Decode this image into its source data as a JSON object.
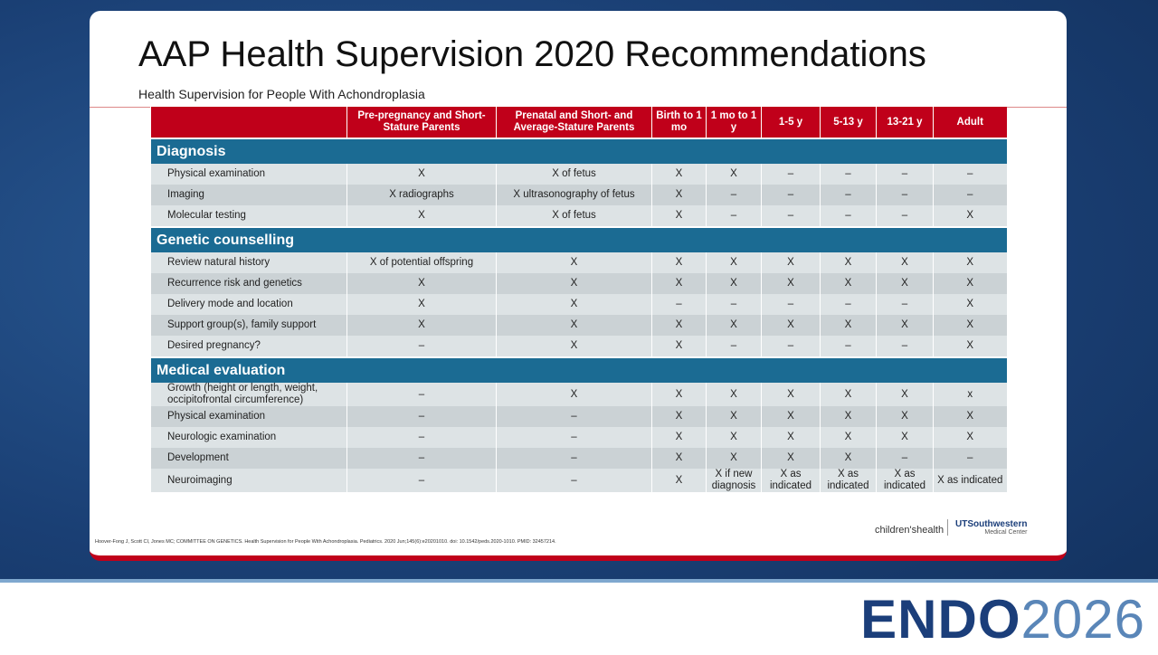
{
  "title": "AAP Health Supervision 2020 Recommendations",
  "subtitle": "Health Supervision for People With Achondroplasia",
  "table": {
    "columns": [
      "Pre-pregnancy and Short-Stature Parents",
      "Prenatal and Short- and Average-Stature Parents",
      "Birth to 1 mo",
      "1 mo to 1 y",
      "1-5 y",
      "5-13 y",
      "13-21 y",
      "Adult"
    ],
    "sections": [
      {
        "title": "Diagnosis",
        "rows": [
          [
            "Physical examination",
            "X",
            "X of fetus",
            "X",
            "X",
            "–",
            "–",
            "–",
            "–"
          ],
          [
            "Imaging",
            "X radiographs",
            "X ultrasonography of fetus",
            "X",
            "–",
            "–",
            "–",
            "–",
            "–"
          ],
          [
            "Molecular testing",
            "X",
            "X of fetus",
            "X",
            "–",
            "–",
            "–",
            "–",
            "X"
          ]
        ]
      },
      {
        "title": "Genetic counselling",
        "rows": [
          [
            "Review natural history",
            "X of potential offspring",
            "X",
            "X",
            "X",
            "X",
            "X",
            "X",
            "X"
          ],
          [
            "Recurrence risk and genetics",
            "X",
            "X",
            "X",
            "X",
            "X",
            "X",
            "X",
            "X"
          ],
          [
            "Delivery mode and location",
            "X",
            "X",
            "–",
            "–",
            "–",
            "–",
            "–",
            "X"
          ],
          [
            "Support group(s), family support",
            "X",
            "X",
            "X",
            "X",
            "X",
            "X",
            "X",
            "X"
          ],
          [
            "Desired pregnancy?",
            "–",
            "X",
            "X",
            "–",
            "–",
            "–",
            "–",
            "X"
          ]
        ]
      },
      {
        "title": "Medical evaluation",
        "rows": [
          [
            "Growth (height or length, weight, occipitofrontal circumference)",
            "–",
            "X",
            "X",
            "X",
            "X",
            "X",
            "X",
            "x"
          ],
          [
            "Physical examination",
            "–",
            "–",
            "X",
            "X",
            "X",
            "X",
            "X",
            "X"
          ],
          [
            "Neurologic examination",
            "–",
            "–",
            "X",
            "X",
            "X",
            "X",
            "X",
            "X"
          ],
          [
            "Development",
            "–",
            "–",
            "X",
            "X",
            "X",
            "X",
            "–",
            "–"
          ],
          [
            "Neuroimaging",
            "–",
            "–",
            "X",
            "X if new diagnosis",
            "X as indicated",
            "X as indicated",
            "X as indicated",
            "X as indicated"
          ]
        ]
      }
    ]
  },
  "citation": "Hoover-Fong J, Scott CI, Jones MC; COMMITTEE ON GENETICS. Health Supervision for People With Achondroplasia. Pediatrics. 2020 Jun;145(6):e20201010. doi: 10.1542/peds.2020-1010. PMID: 32457214.",
  "logos": {
    "childrens": "children'shealth",
    "utsw": "UTSouthwestern",
    "utsw_sub": "Medical Center"
  },
  "brand": {
    "name": "ENDO",
    "year": "2026"
  }
}
